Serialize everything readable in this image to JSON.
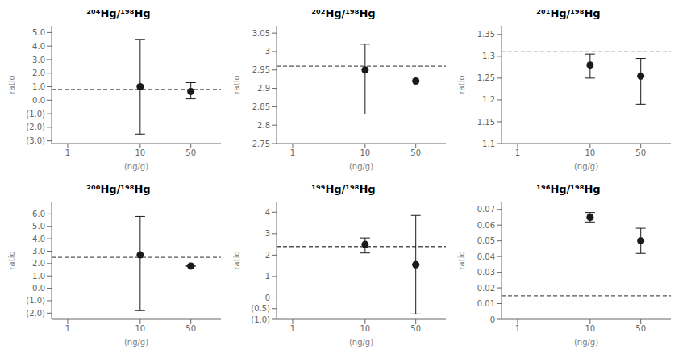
{
  "chart_data": [
    {
      "type": "scatter",
      "title": "²⁰⁴Hg/¹⁹⁸Hg",
      "x_label": "(ng/g)",
      "y_label": "ratio",
      "log": "x",
      "grid": false,
      "color": "#1a1a1a",
      "xlim": [
        0.6,
        130
      ],
      "xticks": [
        1,
        10,
        50
      ],
      "ylim": [
        -3.2,
        5.5
      ],
      "yticks": [
        {
          "value": 5.0,
          "label": "5.0"
        },
        {
          "value": 4.0,
          "label": "4.0"
        },
        {
          "value": 3.0,
          "label": "3.0"
        },
        {
          "value": 2.0,
          "label": "2.0"
        },
        {
          "value": 1.0,
          "label": "1.0"
        },
        {
          "value": 0.0,
          "label": "0.0"
        },
        {
          "value": -1.0,
          "label": "(1.0)"
        },
        {
          "value": -2.0,
          "label": "(2.0)"
        },
        {
          "value": -3.0,
          "label": "(3.0)"
        }
      ],
      "x": [
        10,
        50
      ],
      "values": [
        1.0,
        0.65
      ],
      "error_low": [
        3.5,
        0.55
      ],
      "error_high": [
        3.5,
        0.65
      ],
      "reference_line": {
        "y": 0.8,
        "color": "#555555",
        "line_style": "dashed"
      }
    },
    {
      "type": "scatter",
      "title": "²⁰²Hg/¹⁹⁸Hg",
      "x_label": "(ng/g)",
      "y_label": "ratio",
      "log": "x",
      "grid": false,
      "color": "#1a1a1a",
      "xlim": [
        0.6,
        130
      ],
      "xticks": [
        1,
        10,
        50
      ],
      "ylim": [
        2.75,
        3.07
      ],
      "yticks": [
        3.05,
        3,
        2.95,
        2.9,
        2.85,
        2.8,
        2.75
      ],
      "x": [
        10,
        50
      ],
      "values": [
        2.95,
        2.92
      ],
      "error_low": [
        0.12,
        0.0
      ],
      "error_high": [
        0.07,
        0.0
      ],
      "reference_line": {
        "y": 2.96,
        "color": "#555555",
        "line_style": "dashed"
      }
    },
    {
      "type": "scatter",
      "title": "²⁰¹Hg/¹⁹⁸Hg",
      "x_label": "(ng/g)",
      "y_label": "ratio",
      "log": "x",
      "grid": false,
      "color": "#1a1a1a",
      "xlim": [
        0.6,
        130
      ],
      "xticks": [
        1,
        10,
        50
      ],
      "ylim": [
        1.1,
        1.37
      ],
      "yticks": [
        1.35,
        1.3,
        1.25,
        1.2,
        1.15,
        1.1
      ],
      "x": [
        10,
        50
      ],
      "values": [
        1.28,
        1.255
      ],
      "error_low": [
        0.03,
        0.065
      ],
      "error_high": [
        0.025,
        0.04
      ],
      "reference_line": {
        "y": 1.31,
        "color": "#555555",
        "line_style": "dashed"
      }
    },
    {
      "type": "scatter",
      "title": "²⁰⁰Hg/¹⁹⁸Hg",
      "x_label": "(ng/g)",
      "y_label": "ratio",
      "log": "x",
      "grid": false,
      "color": "#1a1a1a",
      "xlim": [
        0.6,
        130
      ],
      "xticks": [
        1,
        10,
        50
      ],
      "ylim": [
        -2.5,
        7.0
      ],
      "yticks": [
        {
          "value": 6.0,
          "label": "6.0"
        },
        {
          "value": 5.0,
          "label": "5.0"
        },
        {
          "value": 4.0,
          "label": "4.0"
        },
        {
          "value": 3.0,
          "label": "3.0"
        },
        {
          "value": 2.0,
          "label": "2.0"
        },
        {
          "value": 1.0,
          "label": "1.0"
        },
        {
          "value": 0.0,
          "label": "0.0"
        },
        {
          "value": -1.0,
          "label": "(1.0)"
        },
        {
          "value": -2.0,
          "label": "(2.0)"
        }
      ],
      "x": [
        10,
        50
      ],
      "values": [
        2.7,
        1.8
      ],
      "error_low": [
        4.5,
        0.0
      ],
      "error_high": [
        3.1,
        0.0
      ],
      "reference_line": {
        "y": 2.5,
        "color": "#555555",
        "line_style": "dashed"
      }
    },
    {
      "type": "scatter",
      "title": "¹⁹⁹Hg/¹⁹⁸Hg",
      "x_label": "(ng/g)",
      "y_label": "ratio",
      "log": "x",
      "grid": false,
      "color": "#1a1a1a",
      "xlim": [
        0.6,
        130
      ],
      "xticks": [
        1,
        10,
        50
      ],
      "ylim": [
        -1.0,
        4.5
      ],
      "yticks": [
        4,
        3,
        2,
        1,
        0,
        {
          "value": -0.5,
          "label": "(0.5)"
        },
        {
          "value": -1.0,
          "label": "(1.0)"
        }
      ],
      "x": [
        10,
        50
      ],
      "values": [
        2.5,
        1.55
      ],
      "error_low": [
        0.4,
        2.3
      ],
      "error_high": [
        0.3,
        2.3
      ],
      "reference_line": {
        "y": 2.4,
        "color": "#555555",
        "line_style": "dashed"
      }
    },
    {
      "type": "scatter",
      "title": "¹⁹⁶Hg/¹⁹⁸Hg",
      "x_label": "(ng/g)",
      "y_label": "ratio",
      "log": "x",
      "grid": false,
      "color": "#1a1a1a",
      "xlim": [
        0.6,
        130
      ],
      "xticks": [
        1,
        10,
        50
      ],
      "ylim": [
        0.0,
        0.075
      ],
      "yticks": [
        0.07,
        0.06,
        0.05,
        0.04,
        0.03,
        0.02,
        0.01,
        0
      ],
      "x": [
        10,
        50
      ],
      "values": [
        0.065,
        0.05
      ],
      "error_low": [
        0.003,
        0.008
      ],
      "error_high": [
        0.003,
        0.008
      ],
      "reference_line": {
        "y": 0.015,
        "color": "#555555",
        "line_style": "dashed"
      }
    }
  ]
}
